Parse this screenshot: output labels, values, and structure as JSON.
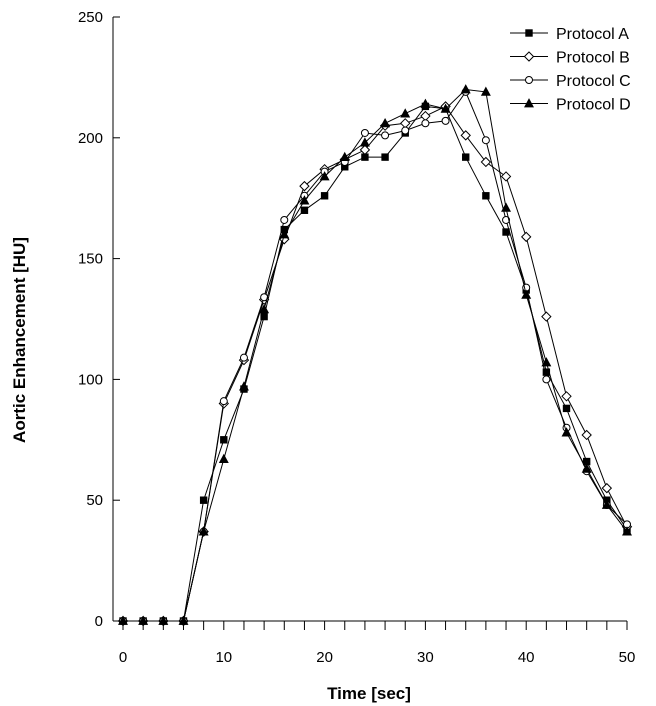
{
  "chart_data": {
    "type": "line",
    "xlabel": "Time [sec]",
    "ylabel": "Aortic Enhancement [HU]",
    "xlim": [
      0,
      50
    ],
    "ylim": [
      0,
      250
    ],
    "xticks": [
      0,
      10,
      20,
      30,
      40,
      50
    ],
    "yticks": [
      0,
      50,
      100,
      150,
      200,
      250
    ],
    "grid": false,
    "legend": "top-right",
    "series": [
      {
        "name": "Protocol A",
        "marker": "square-filled",
        "x": [
          0,
          2,
          4,
          6,
          8,
          10,
          12,
          14,
          16,
          18,
          20,
          22,
          24,
          26,
          28,
          30,
          32,
          34,
          36,
          38,
          40,
          42,
          44,
          46,
          48,
          50
        ],
        "y": [
          0,
          0,
          0,
          0,
          50,
          75,
          96,
          126,
          162,
          170,
          176,
          188,
          192,
          192,
          202,
          213,
          212,
          192,
          176,
          161,
          137,
          103,
          88,
          66,
          50,
          38
        ]
      },
      {
        "name": "Protocol B",
        "marker": "diamond-open",
        "x": [
          0,
          2,
          4,
          6,
          8,
          10,
          12,
          14,
          16,
          18,
          20,
          22,
          24,
          26,
          28,
          30,
          32,
          34,
          36,
          38,
          40,
          42,
          44,
          46,
          48,
          50
        ],
        "y": [
          0,
          0,
          0,
          0,
          37,
          90,
          108,
          133,
          158,
          180,
          187,
          191,
          195,
          205,
          206,
          209,
          213,
          201,
          190,
          184,
          159,
          126,
          93,
          77,
          55,
          39
        ]
      },
      {
        "name": "Protocol C",
        "marker": "circle-open",
        "x": [
          0,
          2,
          4,
          6,
          8,
          10,
          12,
          14,
          16,
          18,
          20,
          22,
          24,
          26,
          28,
          30,
          32,
          34,
          36,
          38,
          40,
          42,
          44,
          46,
          48,
          50
        ],
        "y": [
          0,
          0,
          0,
          0,
          37,
          91,
          109,
          134,
          166,
          176,
          186,
          190,
          202,
          201,
          203,
          206,
          207,
          219,
          199,
          166,
          138,
          100,
          80,
          62,
          48,
          40
        ]
      },
      {
        "name": "Protocol D",
        "marker": "triangle-filled",
        "x": [
          0,
          2,
          4,
          6,
          8,
          10,
          12,
          14,
          16,
          18,
          20,
          22,
          24,
          26,
          28,
          30,
          32,
          34,
          36,
          38,
          40,
          42,
          44,
          46,
          48,
          50
        ],
        "y": [
          0,
          0,
          0,
          0,
          37,
          67,
          97,
          129,
          160,
          174,
          184,
          192,
          198,
          206,
          210,
          214,
          212,
          220,
          219,
          171,
          135,
          107,
          78,
          63,
          48,
          37
        ]
      }
    ]
  },
  "colors": {
    "line": "#000000",
    "background": "#ffffff"
  }
}
